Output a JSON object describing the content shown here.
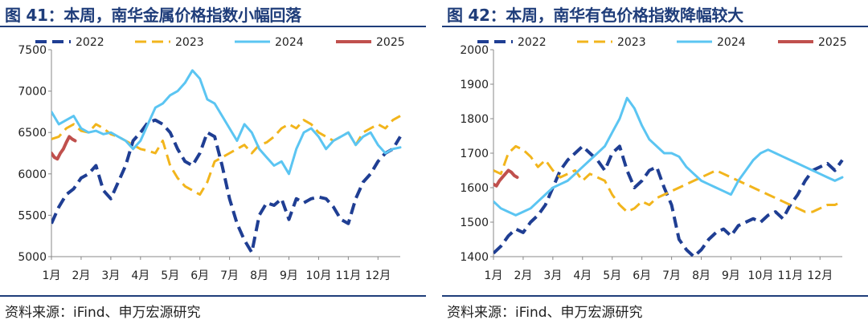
{
  "panels": [
    {
      "title": "图 41：本周，南华金属价格指数小幅回落",
      "source": "资料来源：iFind、申万宏源研究"
    },
    {
      "title": "图 42：本周，南华有色价格指数降幅较大",
      "source": "资料来源：iFind、申万宏源研究"
    }
  ],
  "chart_data": [
    {
      "type": "line",
      "title": "图 41：本周，南华金属价格指数小幅回落",
      "x_ticks": [
        "1月",
        "2月",
        "3月",
        "4月",
        "5月",
        "6月",
        "7月",
        "8月",
        "9月",
        "10月",
        "11月",
        "12月"
      ],
      "ylim": [
        5000,
        7500
      ],
      "y_ticks": [
        5000,
        5500,
        6000,
        6500,
        7000,
        7500
      ],
      "grid": false,
      "legend_position": "top",
      "series": [
        {
          "name": "2022",
          "color": "#1f3e93",
          "dash": "long",
          "width": 4,
          "x": [
            1,
            1.25,
            1.5,
            1.75,
            2,
            2.25,
            2.5,
            2.75,
            3,
            3.25,
            3.5,
            3.75,
            4,
            4.25,
            4.5,
            4.75,
            5,
            5.25,
            5.5,
            5.75,
            6,
            6.25,
            6.5,
            6.75,
            7,
            7.25,
            7.5,
            7.75,
            8,
            8.25,
            8.5,
            8.75,
            9,
            9.25,
            9.5,
            9.75,
            10,
            10.25,
            10.5,
            10.75,
            11,
            11.25,
            11.5,
            11.75,
            12,
            12.25,
            12.5,
            12.75
          ],
          "y": [
            5400,
            5600,
            5750,
            5820,
            5950,
            6000,
            6100,
            5800,
            5700,
            5900,
            6100,
            6400,
            6500,
            6620,
            6650,
            6600,
            6500,
            6300,
            6150,
            6100,
            6250,
            6500,
            6450,
            6100,
            5700,
            5400,
            5200,
            5050,
            5500,
            5650,
            5620,
            5700,
            5450,
            5700,
            5650,
            5700,
            5720,
            5700,
            5600,
            5450,
            5400,
            5700,
            5900,
            6000,
            6150,
            6250,
            6300,
            6450
          ]
        },
        {
          "name": "2023",
          "color": "#f2b51c",
          "dash": "long",
          "width": 3,
          "x": [
            1,
            1.25,
            1.5,
            1.75,
            2,
            2.25,
            2.5,
            2.75,
            3,
            3.25,
            3.5,
            3.75,
            4,
            4.25,
            4.5,
            4.75,
            5,
            5.25,
            5.5,
            5.75,
            6,
            6.25,
            6.5,
            6.75,
            7,
            7.25,
            7.5,
            7.75,
            8,
            8.25,
            8.5,
            8.75,
            9,
            9.25,
            9.5,
            9.75,
            10,
            10.25,
            10.5,
            10.75,
            11,
            11.25,
            11.5,
            11.75,
            12,
            12.25,
            12.5,
            12.75
          ],
          "y": [
            6420,
            6450,
            6550,
            6600,
            6520,
            6500,
            6600,
            6550,
            6480,
            6450,
            6400,
            6350,
            6300,
            6280,
            6250,
            6400,
            6100,
            5950,
            5850,
            5800,
            5750,
            5900,
            6150,
            6200,
            6250,
            6300,
            6350,
            6250,
            6350,
            6380,
            6450,
            6550,
            6600,
            6550,
            6650,
            6600,
            6500,
            6450,
            6400,
            6450,
            6500,
            6350,
            6500,
            6550,
            6600,
            6550,
            6650,
            6700
          ]
        },
        {
          "name": "2024",
          "color": "#5bc5f2",
          "dash": "solid",
          "width": 3,
          "x": [
            1,
            1.25,
            1.5,
            1.75,
            2,
            2.25,
            2.5,
            2.75,
            3,
            3.25,
            3.5,
            3.75,
            4,
            4.25,
            4.5,
            4.75,
            5,
            5.25,
            5.5,
            5.75,
            6,
            6.25,
            6.5,
            6.75,
            7,
            7.25,
            7.5,
            7.75,
            8,
            8.25,
            8.5,
            8.75,
            9,
            9.25,
            9.5,
            9.75,
            10,
            10.25,
            10.5,
            10.75,
            11,
            11.25,
            11.5,
            11.75,
            12,
            12.25,
            12.5,
            12.75
          ],
          "y": [
            6750,
            6600,
            6650,
            6700,
            6550,
            6500,
            6520,
            6480,
            6500,
            6450,
            6400,
            6300,
            6400,
            6600,
            6800,
            6850,
            6950,
            7000,
            7100,
            7250,
            7150,
            6900,
            6850,
            6700,
            6550,
            6400,
            6600,
            6500,
            6300,
            6200,
            6100,
            6150,
            6000,
            6300,
            6500,
            6550,
            6450,
            6300,
            6400,
            6450,
            6500,
            6350,
            6450,
            6500,
            6350,
            6250,
            6300,
            6320
          ]
        },
        {
          "name": "2025",
          "color": "#c0504d",
          "dash": "solid",
          "width": 4,
          "x": [
            1,
            1.1,
            1.2,
            1.3,
            1.4,
            1.5,
            1.6,
            1.7,
            1.8
          ],
          "y": [
            6250,
            6200,
            6180,
            6250,
            6300,
            6380,
            6450,
            6420,
            6400
          ]
        }
      ]
    },
    {
      "type": "line",
      "title": "图 42：本周，南华有色价格指数降幅较大",
      "x_ticks": [
        "1月",
        "2月",
        "3月",
        "4月",
        "5月",
        "6月",
        "7月",
        "8月",
        "9月",
        "10月",
        "11月",
        "12月"
      ],
      "ylim": [
        1400,
        2000
      ],
      "y_ticks": [
        1400,
        1500,
        1600,
        1700,
        1800,
        1900,
        2000
      ],
      "grid": false,
      "legend_position": "top",
      "series": [
        {
          "name": "2022",
          "color": "#1f3e93",
          "dash": "long",
          "width": 4,
          "x": [
            1,
            1.25,
            1.5,
            1.75,
            2,
            2.25,
            2.5,
            2.75,
            3,
            3.25,
            3.5,
            3.75,
            4,
            4.25,
            4.5,
            4.75,
            5,
            5.25,
            5.5,
            5.75,
            6,
            6.25,
            6.5,
            6.75,
            7,
            7.25,
            7.5,
            7.75,
            8,
            8.25,
            8.5,
            8.75,
            9,
            9.25,
            9.5,
            9.75,
            10,
            10.25,
            10.5,
            10.75,
            11,
            11.25,
            11.5,
            11.75,
            12,
            12.25,
            12.5,
            12.75
          ],
          "y": [
            1410,
            1430,
            1460,
            1480,
            1470,
            1500,
            1520,
            1550,
            1600,
            1650,
            1680,
            1700,
            1720,
            1700,
            1680,
            1650,
            1700,
            1720,
            1650,
            1600,
            1620,
            1650,
            1660,
            1600,
            1550,
            1450,
            1420,
            1400,
            1420,
            1450,
            1470,
            1480,
            1460,
            1490,
            1500,
            1510,
            1500,
            1520,
            1530,
            1510,
            1550,
            1580,
            1620,
            1650,
            1660,
            1670,
            1650,
            1680
          ]
        },
        {
          "name": "2023",
          "color": "#f2b51c",
          "dash": "long",
          "width": 3,
          "x": [
            1,
            1.25,
            1.5,
            1.75,
            2,
            2.25,
            2.5,
            2.75,
            3,
            3.25,
            3.5,
            3.75,
            4,
            4.25,
            4.5,
            4.75,
            5,
            5.25,
            5.5,
            5.75,
            6,
            6.25,
            6.5,
            6.75,
            7,
            7.25,
            7.5,
            7.75,
            8,
            8.25,
            8.5,
            8.75,
            9,
            9.25,
            9.5,
            9.75,
            10,
            10.25,
            10.5,
            10.75,
            11,
            11.25,
            11.5,
            11.75,
            12,
            12.25,
            12.5,
            12.75
          ],
          "y": [
            1650,
            1640,
            1700,
            1720,
            1710,
            1690,
            1660,
            1680,
            1650,
            1630,
            1640,
            1650,
            1620,
            1640,
            1630,
            1620,
            1580,
            1550,
            1530,
            1540,
            1560,
            1550,
            1570,
            1580,
            1590,
            1600,
            1610,
            1620,
            1630,
            1640,
            1650,
            1640,
            1630,
            1620,
            1610,
            1600,
            1590,
            1580,
            1570,
            1560,
            1550,
            1540,
            1530,
            1530,
            1540,
            1550,
            1550,
            1560
          ]
        },
        {
          "name": "2024",
          "color": "#5bc5f2",
          "dash": "solid",
          "width": 3,
          "x": [
            1,
            1.25,
            1.5,
            1.75,
            2,
            2.25,
            2.5,
            2.75,
            3,
            3.25,
            3.5,
            3.75,
            4,
            4.25,
            4.5,
            4.75,
            5,
            5.25,
            5.5,
            5.75,
            6,
            6.25,
            6.5,
            6.75,
            7,
            7.25,
            7.5,
            7.75,
            8,
            8.25,
            8.5,
            8.75,
            9,
            9.25,
            9.5,
            9.75,
            10,
            10.25,
            10.5,
            10.75,
            11,
            11.25,
            11.5,
            11.75,
            12,
            12.25,
            12.5,
            12.75
          ],
          "y": [
            1560,
            1540,
            1530,
            1520,
            1530,
            1540,
            1560,
            1580,
            1600,
            1610,
            1620,
            1640,
            1660,
            1680,
            1700,
            1720,
            1760,
            1800,
            1860,
            1830,
            1780,
            1740,
            1720,
            1700,
            1700,
            1690,
            1660,
            1640,
            1620,
            1610,
            1600,
            1590,
            1580,
            1620,
            1650,
            1680,
            1700,
            1710,
            1700,
            1690,
            1680,
            1670,
            1660,
            1650,
            1640,
            1630,
            1620,
            1630
          ]
        },
        {
          "name": "2025",
          "color": "#c0504d",
          "dash": "solid",
          "width": 4,
          "x": [
            1,
            1.1,
            1.2,
            1.3,
            1.4,
            1.5,
            1.6,
            1.7,
            1.8
          ],
          "y": [
            1610,
            1605,
            1620,
            1630,
            1640,
            1650,
            1645,
            1635,
            1630
          ]
        }
      ]
    }
  ]
}
